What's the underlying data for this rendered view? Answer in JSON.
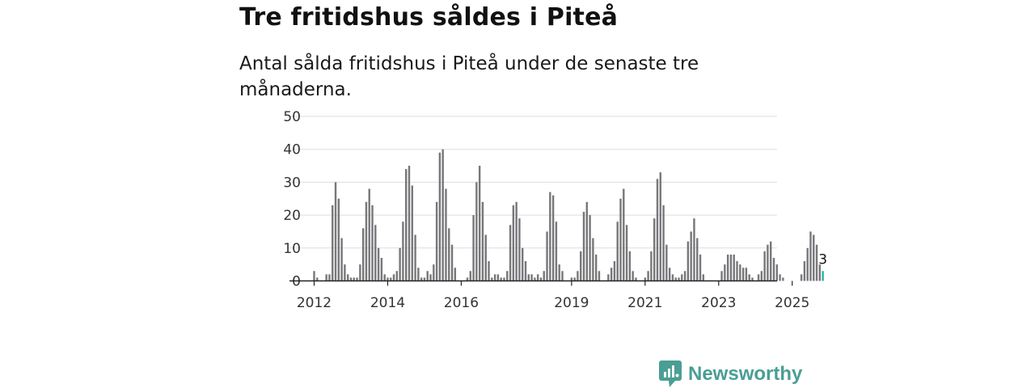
{
  "title": "Tre fritidshus såldes i Piteå",
  "subtitle": "Antal sålda fritidshus i Piteå under de senaste tre månaderna.",
  "brand": {
    "name": "Newsworthy"
  },
  "colors": {
    "bar": "#77777b",
    "highlight": "#2ab3a7",
    "grid": "#dddddd",
    "axis": "#222222",
    "brand": "#4a9e94"
  },
  "chart_data": {
    "type": "bar",
    "title": "Tre fritidshus såldes i Piteå",
    "subtitle": "Antal sålda fritidshus i Piteå under de senaste tre månaderna.",
    "xlabel": "",
    "ylabel": "",
    "ylim": [
      0,
      50
    ],
    "yticks": [
      0,
      10,
      20,
      30,
      40,
      50
    ],
    "grid": true,
    "x_start": "2012-01",
    "frequency": "monthly (rolling three-month sum)",
    "xtick_labels": [
      {
        "label": "2012",
        "index": 0
      },
      {
        "label": "2014",
        "index": 24
      },
      {
        "label": "2016",
        "index": 48
      },
      {
        "label": "2019",
        "index": 84
      },
      {
        "label": "2021",
        "index": 108
      },
      {
        "label": "2023",
        "index": 132
      },
      {
        "label": "2025",
        "index": 156
      }
    ],
    "values": [
      3,
      1,
      0,
      0,
      2,
      2,
      23,
      30,
      25,
      13,
      5,
      2,
      1,
      1,
      1,
      5,
      16,
      24,
      28,
      23,
      17,
      10,
      7,
      2,
      1,
      1,
      2,
      3,
      10,
      18,
      34,
      35,
      29,
      14,
      4,
      1,
      1,
      3,
      2,
      5,
      24,
      39,
      40,
      28,
      16,
      11,
      4,
      0,
      0,
      0,
      1,
      3,
      20,
      30,
      35,
      24,
      14,
      6,
      1,
      2,
      2,
      1,
      1,
      3,
      17,
      23,
      24,
      19,
      10,
      6,
      2,
      2,
      1,
      2,
      1,
      3,
      15,
      27,
      26,
      18,
      5,
      3,
      0,
      0,
      1,
      1,
      3,
      9,
      21,
      24,
      20,
      13,
      8,
      3,
      0,
      0,
      2,
      4,
      6,
      18,
      25,
      28,
      17,
      9,
      3,
      1,
      0,
      0,
      1,
      3,
      9,
      19,
      31,
      33,
      23,
      11,
      4,
      2,
      1,
      1,
      2,
      3,
      12,
      15,
      19,
      13,
      8,
      2,
      0,
      0,
      0,
      0,
      0,
      3,
      5,
      8,
      8,
      8,
      6,
      5,
      4,
      4,
      2,
      1,
      0,
      2,
      3,
      9,
      11,
      12,
      7,
      5,
      2,
      1,
      0,
      0,
      0,
      0,
      0,
      2,
      6,
      10,
      15,
      14,
      11,
      5,
      3
    ],
    "highlight": {
      "index": 166,
      "label": "2025-11",
      "value": 3,
      "annotation": "3"
    }
  }
}
